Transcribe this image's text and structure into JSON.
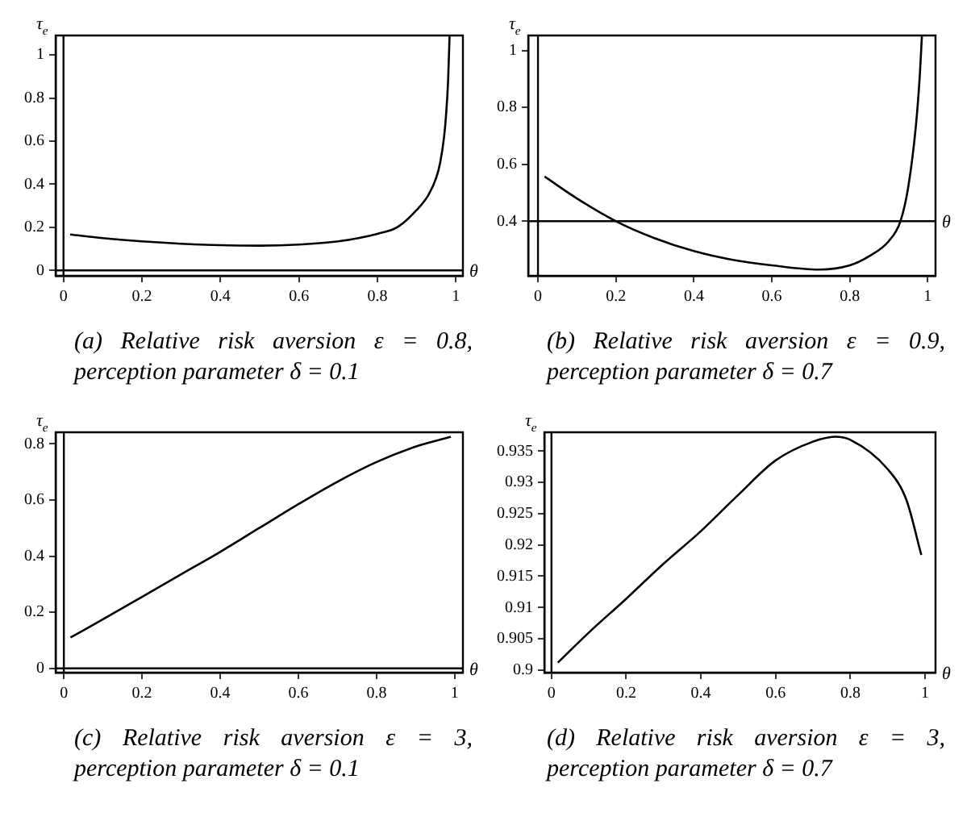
{
  "chart_data": [
    {
      "type": "line",
      "title": "(a) Relative risk aversion ε = 0.8, perception parameter δ = 0.1",
      "xlabel": "θ",
      "ylabel": "τ$_{e}$",
      "grid": false,
      "legend": false,
      "line_style": "solid",
      "marker": "none",
      "x": [
        0.017,
        0.1,
        0.2,
        0.3,
        0.4,
        0.5,
        0.6,
        0.7,
        0.8,
        0.85,
        0.9,
        0.93,
        0.95,
        0.96,
        0.97,
        0.975,
        0.98,
        0.984
      ],
      "series": [
        {
          "color": "#000000",
          "values": [
            0.167,
            0.15,
            0.135,
            0.124,
            0.117,
            0.115,
            0.12,
            0.135,
            0.17,
            0.2,
            0.28,
            0.35,
            0.43,
            0.5,
            0.62,
            0.72,
            0.87,
            1.09
          ]
        }
      ],
      "xlim": [
        -0.02,
        1.018
      ],
      "ylim": [
        -0.025,
        1.09
      ],
      "xticks": [
        0,
        0.2,
        0.4,
        0.6,
        0.8,
        1
      ],
      "yticks": [
        0,
        0.2,
        0.4,
        0.6,
        0.8,
        1
      ],
      "ref_lines": [
        {
          "axis": "x",
          "value": 0
        },
        {
          "axis": "y",
          "value": 0
        }
      ]
    },
    {
      "type": "line",
      "title": "(b) Relative risk aversion ε = 0.9, perception parameter δ = 0.7",
      "xlabel": "θ",
      "ylabel": "τ$_{e}$",
      "grid": false,
      "legend": false,
      "line_style": "solid",
      "marker": "none",
      "x": [
        0.017,
        0.1,
        0.2,
        0.3,
        0.4,
        0.5,
        0.6,
        0.72,
        0.8,
        0.85,
        0.9,
        0.93,
        0.95,
        0.97,
        0.98,
        0.985
      ],
      "series": [
        {
          "color": "#000000",
          "values": [
            0.557,
            0.48,
            0.4,
            0.34,
            0.295,
            0.264,
            0.245,
            0.23,
            0.245,
            0.277,
            0.33,
            0.4,
            0.52,
            0.74,
            0.92,
            1.05
          ]
        }
      ],
      "xlim": [
        -0.025,
        1.02
      ],
      "ylim": [
        0.208,
        1.053
      ],
      "xticks": [
        0,
        0.2,
        0.4,
        0.6,
        0.8,
        1
      ],
      "yticks": [
        0.4,
        0.6,
        0.8,
        1
      ],
      "ref_lines": [
        {
          "axis": "x",
          "value": 0
        },
        {
          "axis": "y",
          "value": 0.4
        }
      ]
    },
    {
      "type": "line",
      "title": "(c) Relative risk aversion ε = 3, perception parameter δ = 0.1",
      "xlabel": "θ",
      "ylabel": "τ$_{e}$",
      "grid": false,
      "legend": false,
      "line_style": "solid",
      "marker": "none",
      "x": [
        0.017,
        0.1,
        0.2,
        0.3,
        0.4,
        0.5,
        0.6,
        0.7,
        0.8,
        0.9,
        0.99
      ],
      "series": [
        {
          "color": "#000000",
          "values": [
            0.11,
            0.175,
            0.255,
            0.335,
            0.415,
            0.5,
            0.585,
            0.665,
            0.735,
            0.79,
            0.825
          ]
        }
      ],
      "xlim": [
        -0.021,
        1.021
      ],
      "ylim": [
        -0.015,
        0.841
      ],
      "xticks": [
        0,
        0.2,
        0.4,
        0.6,
        0.8,
        1
      ],
      "yticks": [
        0,
        0.2,
        0.4,
        0.6,
        0.8
      ],
      "ref_lines": [
        {
          "axis": "x",
          "value": 0
        },
        {
          "axis": "y",
          "value": 0
        }
      ]
    },
    {
      "type": "line",
      "title": "(d) Relative risk aversion ε = 3, perception parameter δ = 0.7",
      "xlabel": "θ",
      "ylabel": "τ$_{e}$",
      "grid": false,
      "legend": false,
      "line_style": "solid",
      "marker": "none",
      "x": [
        0.017,
        0.1,
        0.2,
        0.3,
        0.4,
        0.5,
        0.6,
        0.7,
        0.76,
        0.8,
        0.9,
        0.95,
        0.99
      ],
      "series": [
        {
          "color": "#000000",
          "values": [
            0.9012,
            0.906,
            0.9114,
            0.917,
            0.9222,
            0.928,
            0.9335,
            0.9365,
            0.9373,
            0.9368,
            0.9321,
            0.9272,
            0.9184
          ]
        }
      ],
      "xlim": [
        -0.019,
        1.028
      ],
      "ylim": [
        0.8996,
        0.938
      ],
      "xticks": [
        0,
        0.2,
        0.4,
        0.6,
        0.8,
        1
      ],
      "yticks": [
        0.9,
        0.905,
        0.91,
        0.915,
        0.92,
        0.925,
        0.93,
        0.935
      ],
      "ref_lines": [
        {
          "axis": "x",
          "value": 0
        }
      ]
    }
  ]
}
